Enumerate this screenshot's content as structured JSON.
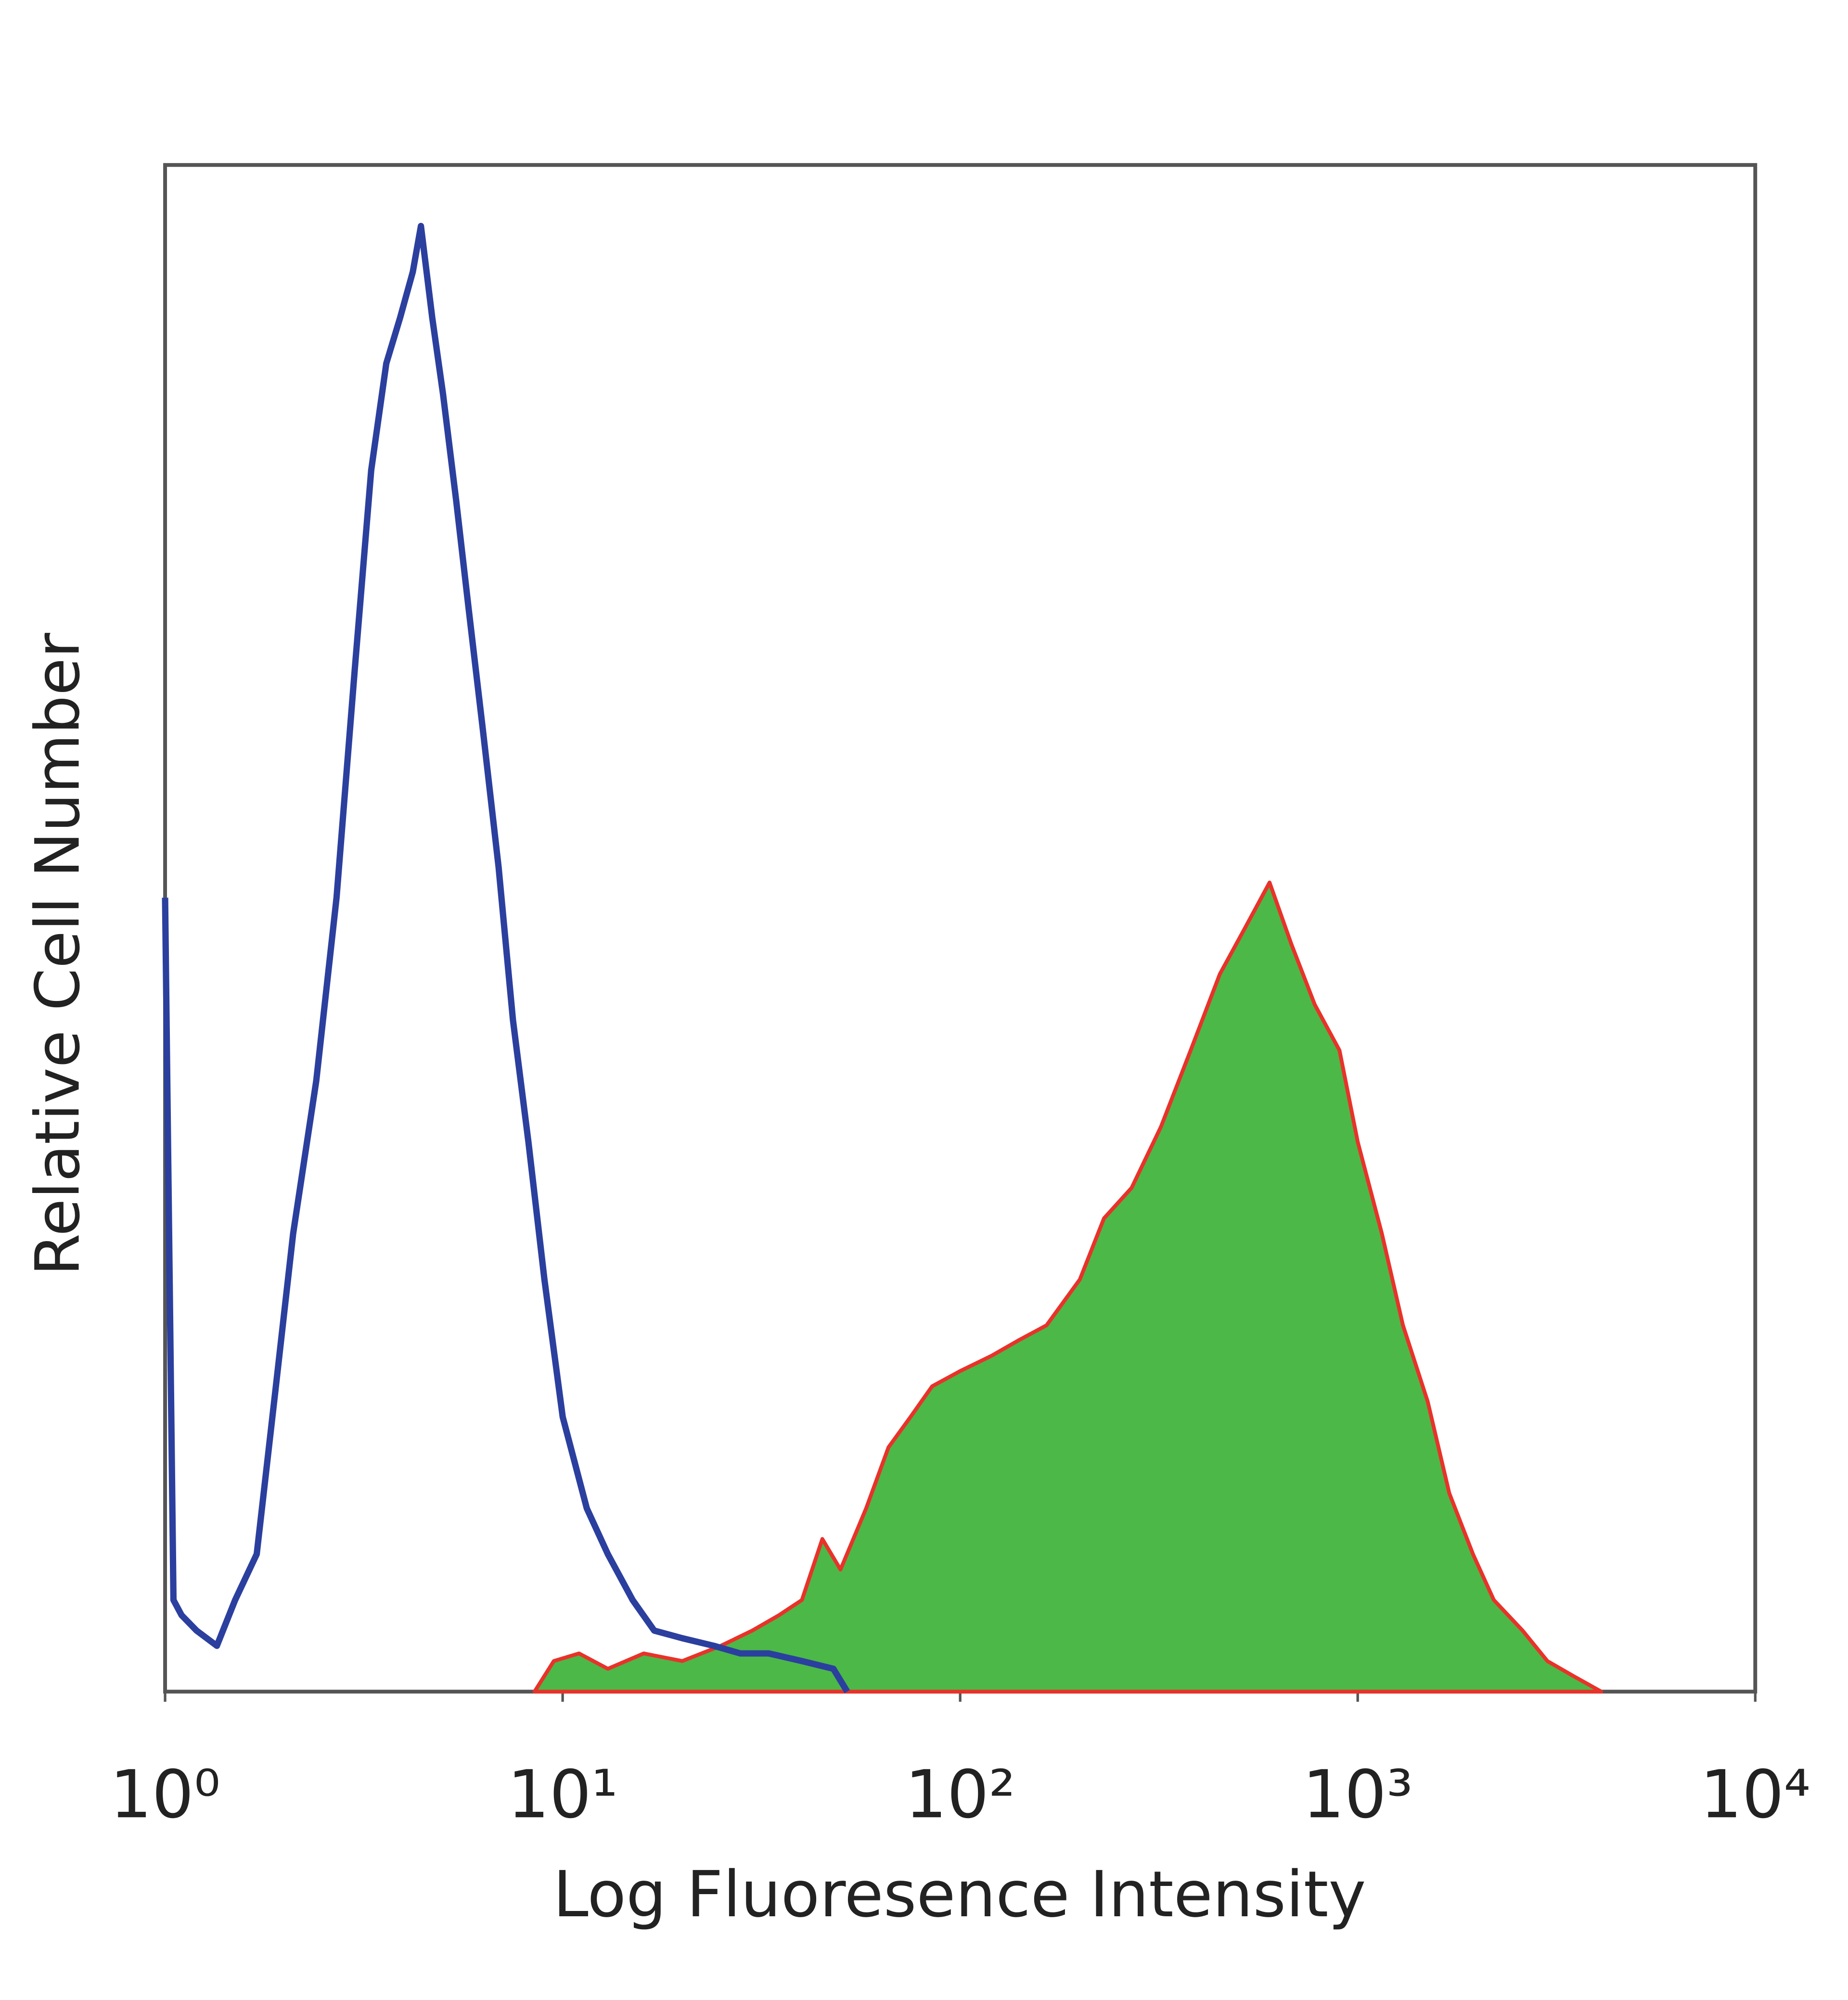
{
  "chart_data": {
    "type": "histogram-overlay",
    "x_label": "Log Fluoresence Intensity",
    "y_label": "Relative Cell Number",
    "xscale": "log",
    "xlim": [
      1,
      10000
    ],
    "ylim": [
      0,
      100
    ],
    "xticks": [
      {
        "value": 1,
        "label": "10⁰"
      },
      {
        "value": 10,
        "label": "10¹"
      },
      {
        "value": 100,
        "label": "10²"
      },
      {
        "value": 1000,
        "label": "10³"
      },
      {
        "value": 10000,
        "label": "10⁴"
      }
    ],
    "series": [
      {
        "style": "area",
        "color": "#e8322a",
        "fill": "#4cb848",
        "x": [
          8.5,
          9.5,
          11,
          13,
          16,
          20,
          25,
          30,
          35,
          40,
          45,
          50,
          58,
          66,
          75,
          85,
          100,
          120,
          140,
          165,
          200,
          230,
          270,
          320,
          380,
          450,
          520,
          600,
          680,
          780,
          900,
          1000,
          1150,
          1300,
          1500,
          1700,
          1950,
          2200,
          2600,
          3000,
          3500,
          4100
        ],
        "values": [
          0,
          2,
          2.5,
          1.5,
          2.5,
          2,
          3,
          4,
          5,
          6,
          10,
          8,
          12,
          16,
          18,
          20,
          21,
          22,
          23,
          24,
          27,
          31,
          33,
          37,
          42,
          47,
          50,
          53,
          49,
          45,
          42,
          36,
          30,
          24,
          19,
          13,
          9,
          6,
          4,
          2,
          1,
          0
        ]
      },
      {
        "style": "line",
        "color": "#2b3f9e",
        "x": [
          1,
          1.05,
          1.1,
          1.2,
          1.35,
          1.5,
          1.7,
          1.9,
          2.1,
          2.4,
          2.7,
          3.0,
          3.3,
          3.6,
          3.9,
          4.2,
          4.4,
          4.7,
          5.0,
          5.4,
          5.8,
          6.3,
          6.9,
          7.5,
          8.2,
          9,
          10,
          11.5,
          13,
          15,
          17,
          20,
          24,
          28,
          33,
          40,
          48,
          52
        ],
        "values": [
          52,
          6,
          5,
          4,
          3,
          6,
          9,
          20,
          30,
          40,
          52,
          67,
          80,
          87,
          90,
          93,
          96,
          90,
          85,
          78,
          71,
          63,
          54,
          44,
          36,
          27,
          18,
          12,
          9,
          6,
          4,
          3.5,
          3,
          2.5,
          2.5,
          2,
          1.5,
          0
        ]
      }
    ]
  }
}
